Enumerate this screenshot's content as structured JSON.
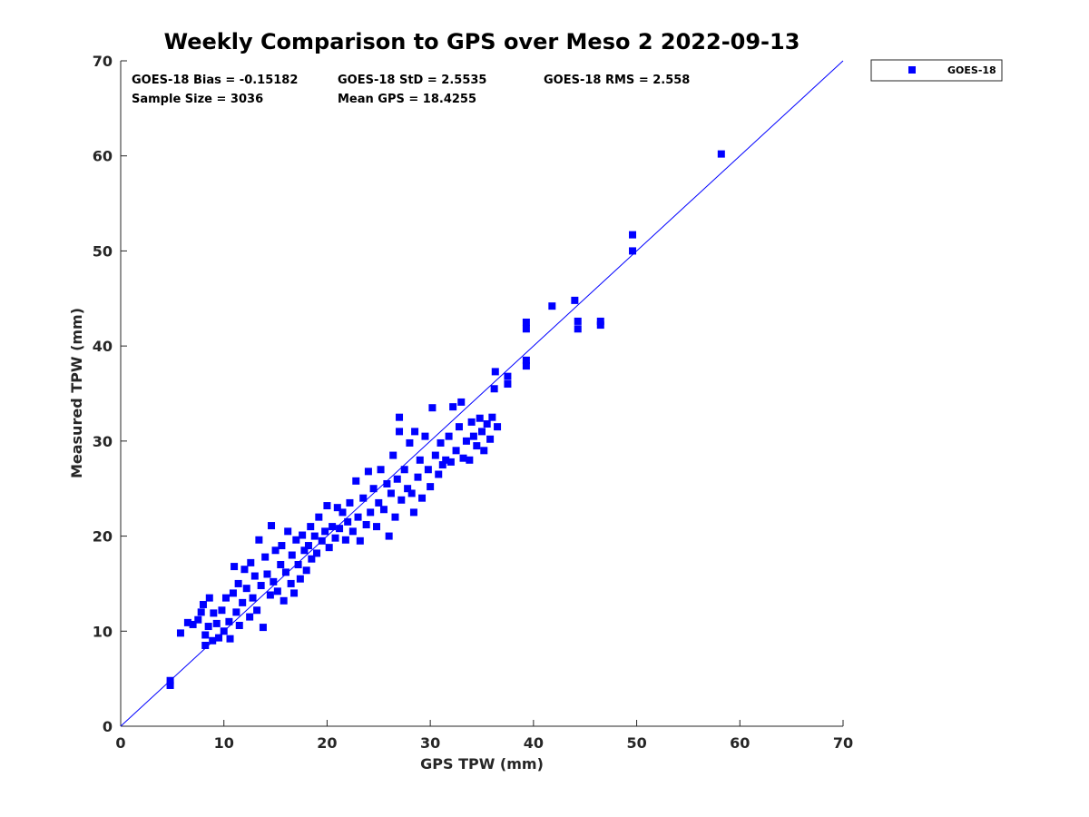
{
  "chart_data": {
    "type": "scatter",
    "title": "Weekly Comparison to GPS over Meso 2 2022-09-13",
    "xlabel": "GPS TPW (mm)",
    "ylabel": "Measured TPW (mm)",
    "xlim": [
      0,
      70
    ],
    "ylim": [
      0,
      70
    ],
    "xticks": [
      0,
      10,
      20,
      30,
      40,
      50,
      60,
      70
    ],
    "yticks": [
      0,
      10,
      20,
      30,
      40,
      50,
      60,
      70
    ],
    "grid": false,
    "legend_position": "outside-top-right",
    "stats": {
      "bias": "GOES-18 Bias = -0.15182",
      "std": "GOES-18 StD = 2.5535",
      "rms": "GOES-18 RMS = 2.558",
      "sample_size": "Sample Size = 3036",
      "mean_gps": "Mean GPS = 18.4255"
    },
    "reference_line": {
      "type": "one-to-one",
      "from": [
        0,
        0
      ],
      "to": [
        70,
        70
      ],
      "color": "#0000ff"
    },
    "series": [
      {
        "name": "GOES-18",
        "color": "#0000ff",
        "marker": "square",
        "points": [
          [
            4.8,
            4.3
          ],
          [
            4.8,
            4.8
          ],
          [
            5.8,
            9.8
          ],
          [
            6.5,
            10.9
          ],
          [
            7.0,
            10.7
          ],
          [
            7.5,
            11.2
          ],
          [
            7.8,
            12.0
          ],
          [
            8.0,
            12.8
          ],
          [
            8.2,
            9.6
          ],
          [
            8.2,
            8.5
          ],
          [
            8.5,
            10.5
          ],
          [
            8.6,
            13.5
          ],
          [
            8.9,
            9.0
          ],
          [
            9.0,
            11.9
          ],
          [
            9.3,
            10.8
          ],
          [
            9.5,
            9.3
          ],
          [
            9.8,
            12.2
          ],
          [
            10.0,
            10.0
          ],
          [
            10.2,
            13.5
          ],
          [
            10.5,
            11.0
          ],
          [
            10.6,
            9.2
          ],
          [
            10.9,
            14.0
          ],
          [
            11.0,
            16.8
          ],
          [
            11.2,
            12.0
          ],
          [
            11.4,
            15.0
          ],
          [
            11.5,
            10.6
          ],
          [
            11.8,
            13.0
          ],
          [
            12.0,
            16.5
          ],
          [
            12.2,
            14.5
          ],
          [
            12.5,
            11.5
          ],
          [
            12.6,
            17.2
          ],
          [
            12.8,
            13.5
          ],
          [
            13.0,
            15.8
          ],
          [
            13.2,
            12.2
          ],
          [
            13.4,
            19.6
          ],
          [
            13.6,
            14.8
          ],
          [
            13.8,
            10.4
          ],
          [
            14.0,
            17.8
          ],
          [
            14.2,
            16.0
          ],
          [
            14.5,
            13.8
          ],
          [
            14.6,
            21.1
          ],
          [
            14.8,
            15.2
          ],
          [
            15.0,
            18.5
          ],
          [
            15.2,
            14.2
          ],
          [
            15.5,
            17.0
          ],
          [
            15.6,
            19.0
          ],
          [
            15.8,
            13.2
          ],
          [
            16.0,
            16.2
          ],
          [
            16.2,
            20.5
          ],
          [
            16.5,
            15.0
          ],
          [
            16.6,
            18.0
          ],
          [
            16.8,
            14.0
          ],
          [
            17.0,
            19.6
          ],
          [
            17.2,
            17.0
          ],
          [
            17.4,
            15.5
          ],
          [
            17.6,
            20.1
          ],
          [
            17.8,
            18.5
          ],
          [
            18.0,
            16.4
          ],
          [
            18.2,
            19.0
          ],
          [
            18.4,
            21.0
          ],
          [
            18.5,
            17.6
          ],
          [
            18.8,
            20.0
          ],
          [
            19.0,
            18.2
          ],
          [
            19.2,
            22.0
          ],
          [
            19.5,
            19.5
          ],
          [
            19.8,
            20.5
          ],
          [
            20.0,
            23.2
          ],
          [
            20.2,
            18.8
          ],
          [
            20.5,
            21.0
          ],
          [
            20.8,
            19.8
          ],
          [
            21.0,
            23.0
          ],
          [
            21.2,
            20.8
          ],
          [
            21.5,
            22.5
          ],
          [
            21.8,
            19.6
          ],
          [
            22.0,
            21.5
          ],
          [
            22.2,
            23.5
          ],
          [
            22.5,
            20.5
          ],
          [
            22.8,
            25.8
          ],
          [
            23.0,
            22.0
          ],
          [
            23.2,
            19.5
          ],
          [
            23.5,
            24.0
          ],
          [
            23.8,
            21.2
          ],
          [
            24.0,
            26.8
          ],
          [
            24.2,
            22.5
          ],
          [
            24.5,
            25.0
          ],
          [
            24.8,
            21.0
          ],
          [
            25.0,
            23.5
          ],
          [
            25.2,
            27.0
          ],
          [
            25.5,
            22.8
          ],
          [
            25.8,
            25.5
          ],
          [
            26.0,
            20.0
          ],
          [
            26.2,
            24.5
          ],
          [
            26.4,
            28.5
          ],
          [
            26.6,
            22.0
          ],
          [
            26.8,
            26.0
          ],
          [
            27.0,
            32.5
          ],
          [
            27.0,
            31.0
          ],
          [
            27.2,
            23.8
          ],
          [
            27.5,
            27.0
          ],
          [
            27.8,
            25.0
          ],
          [
            28.0,
            29.8
          ],
          [
            28.2,
            24.5
          ],
          [
            28.4,
            22.5
          ],
          [
            28.5,
            31.0
          ],
          [
            28.8,
            26.2
          ],
          [
            29.0,
            28.0
          ],
          [
            29.2,
            24.0
          ],
          [
            29.5,
            30.5
          ],
          [
            29.8,
            27.0
          ],
          [
            30.0,
            25.2
          ],
          [
            30.2,
            33.5
          ],
          [
            30.5,
            28.5
          ],
          [
            30.8,
            26.5
          ],
          [
            31.0,
            29.8
          ],
          [
            31.2,
            27.5
          ],
          [
            31.5,
            28.0
          ],
          [
            31.8,
            30.5
          ],
          [
            32.0,
            27.8
          ],
          [
            32.2,
            33.6
          ],
          [
            32.5,
            29.0
          ],
          [
            32.8,
            31.5
          ],
          [
            33.0,
            34.1
          ],
          [
            33.2,
            28.2
          ],
          [
            33.5,
            30.0
          ],
          [
            33.8,
            28.0
          ],
          [
            34.0,
            32.0
          ],
          [
            34.2,
            30.5
          ],
          [
            34.5,
            29.5
          ],
          [
            34.8,
            32.4
          ],
          [
            35.0,
            31.0
          ],
          [
            35.2,
            29.0
          ],
          [
            35.5,
            31.8
          ],
          [
            35.8,
            30.2
          ],
          [
            36.0,
            32.5
          ],
          [
            36.2,
            35.5
          ],
          [
            36.3,
            37.3
          ],
          [
            36.5,
            31.5
          ],
          [
            37.5,
            36.0
          ],
          [
            37.5,
            36.8
          ],
          [
            39.3,
            37.9
          ],
          [
            39.3,
            38.5
          ],
          [
            39.3,
            41.8
          ],
          [
            39.3,
            42.5
          ],
          [
            41.8,
            44.2
          ],
          [
            44.0,
            44.8
          ],
          [
            44.3,
            42.6
          ],
          [
            44.3,
            41.8
          ],
          [
            46.5,
            42.2
          ],
          [
            46.5,
            42.6
          ],
          [
            49.6,
            50.0
          ],
          [
            49.6,
            51.7
          ],
          [
            58.2,
            60.2
          ]
        ]
      }
    ]
  },
  "legend": {
    "label": "GOES-18"
  }
}
